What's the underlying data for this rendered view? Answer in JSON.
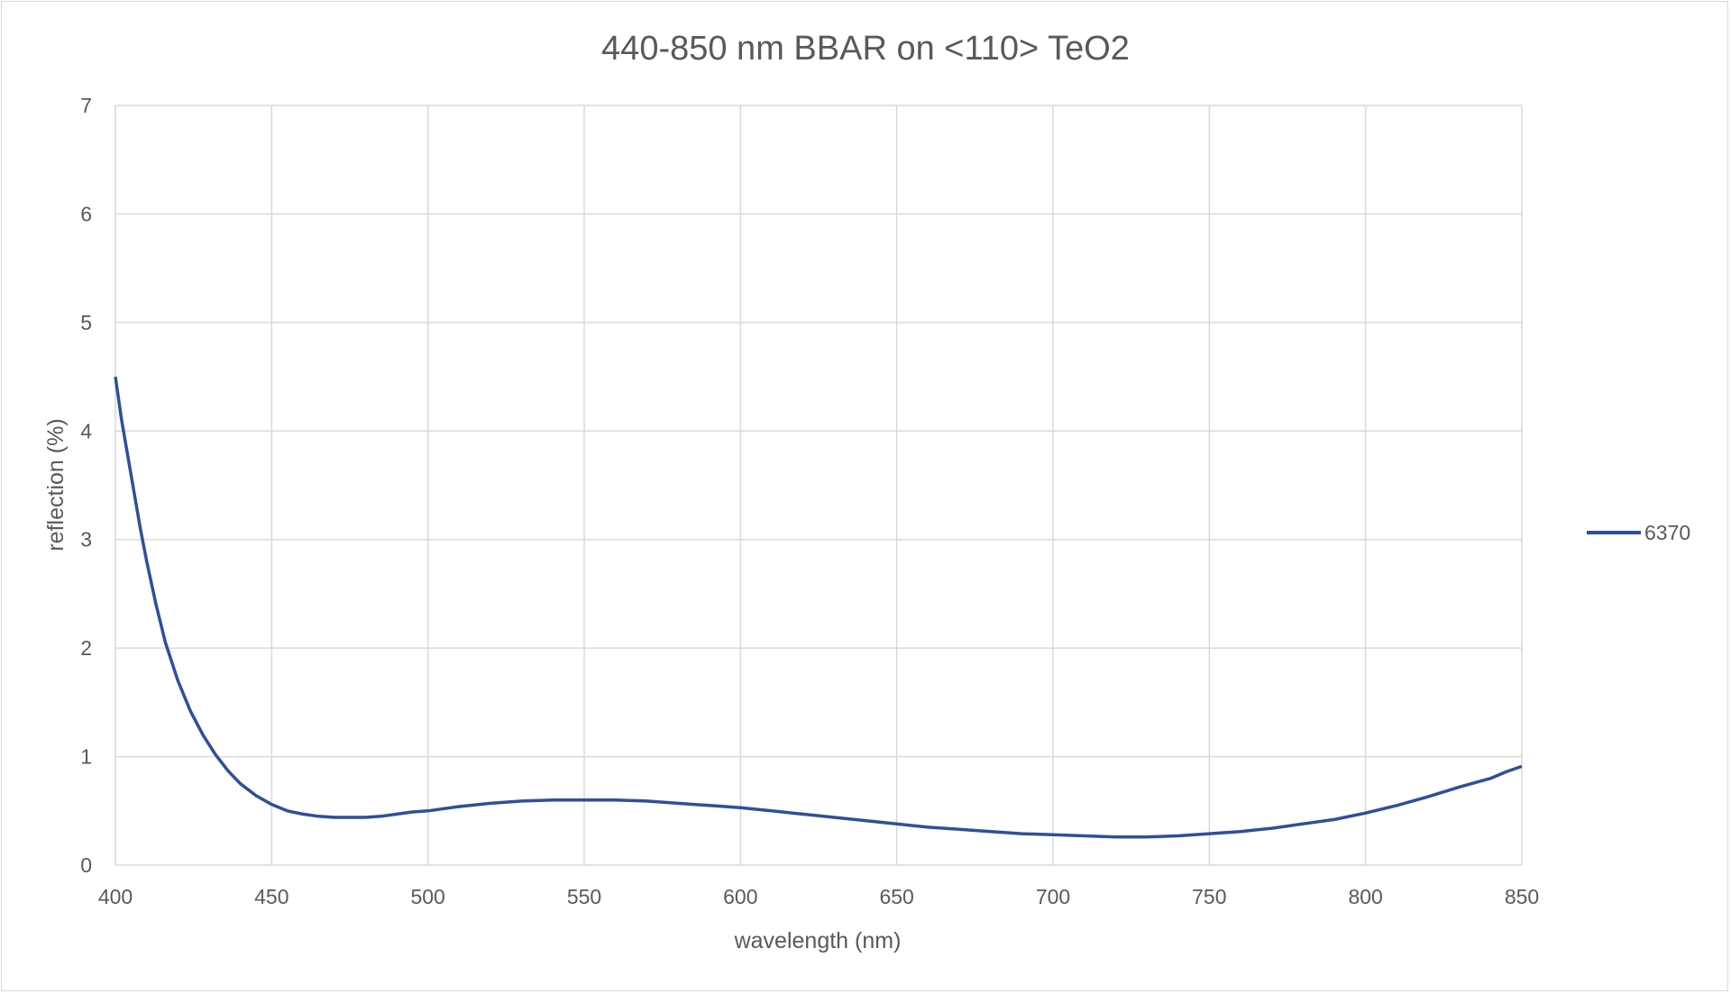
{
  "chart_data": {
    "type": "line",
    "title": "440-850 nm BBAR on <110> TeO2",
    "xlabel": "wavelength (nm)",
    "ylabel": "reflection (%)",
    "xlim": [
      400,
      850
    ],
    "ylim": [
      0,
      7
    ],
    "xticks": [
      "400",
      "450",
      "500",
      "550",
      "600",
      "650",
      "700",
      "750",
      "800",
      "850"
    ],
    "yticks": [
      "0",
      "1",
      "2",
      "3",
      "4",
      "5",
      "6",
      "7"
    ],
    "grid": true,
    "legend_position": "right",
    "series": [
      {
        "name": "6370",
        "color": "#2f4f9a",
        "x": [
          400,
          402,
          405,
          408,
          410,
          413,
          416,
          420,
          424,
          428,
          432,
          436,
          440,
          445,
          450,
          455,
          460,
          465,
          470,
          475,
          480,
          485,
          490,
          495,
          500,
          510,
          520,
          530,
          540,
          550,
          560,
          570,
          580,
          590,
          600,
          610,
          620,
          630,
          640,
          650,
          660,
          670,
          680,
          690,
          700,
          710,
          720,
          730,
          740,
          750,
          760,
          770,
          780,
          790,
          800,
          810,
          820,
          830,
          840,
          845,
          850
        ],
        "y": [
          4.5,
          4.1,
          3.6,
          3.1,
          2.8,
          2.4,
          2.05,
          1.7,
          1.42,
          1.2,
          1.02,
          0.87,
          0.75,
          0.64,
          0.56,
          0.5,
          0.47,
          0.45,
          0.44,
          0.44,
          0.44,
          0.45,
          0.47,
          0.49,
          0.5,
          0.54,
          0.57,
          0.59,
          0.6,
          0.6,
          0.6,
          0.59,
          0.57,
          0.55,
          0.53,
          0.5,
          0.47,
          0.44,
          0.41,
          0.38,
          0.35,
          0.33,
          0.31,
          0.29,
          0.28,
          0.27,
          0.26,
          0.26,
          0.27,
          0.29,
          0.31,
          0.34,
          0.38,
          0.42,
          0.48,
          0.55,
          0.63,
          0.72,
          0.8,
          0.86,
          0.91
        ]
      }
    ]
  }
}
